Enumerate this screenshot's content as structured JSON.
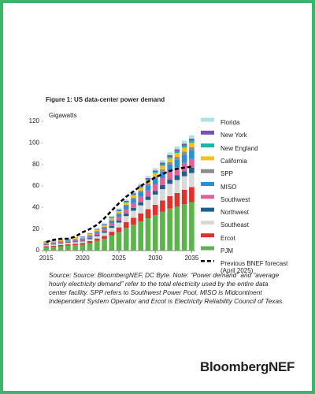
{
  "chart_data": {
    "type": "stacked-bar",
    "title": "Figure 1: US data-center power demand",
    "y_label": "Gigawatts",
    "x": [
      2015,
      2016,
      2017,
      2018,
      2019,
      2020,
      2021,
      2022,
      2023,
      2024,
      2025,
      2026,
      2027,
      2028,
      2029,
      2030,
      2031,
      2032,
      2033,
      2034,
      2035
    ],
    "xlim": [
      2014.5,
      2035.5
    ],
    "xticks": [
      2015,
      2020,
      2025,
      2030,
      2035
    ],
    "ylim": [
      0,
      120
    ],
    "yticks": [
      0,
      20,
      40,
      60,
      80,
      100,
      120
    ],
    "series": [
      {
        "name": "PJM",
        "color": "#5cb44a",
        "values": [
          3,
          3.5,
          4,
          4.5,
          5,
          5.5,
          7,
          9,
          11,
          14,
          17,
          21,
          24,
          27,
          30,
          33,
          36,
          39,
          41,
          43,
          45
        ]
      },
      {
        "name": "Ercot",
        "color": "#e0312c",
        "values": [
          1,
          1,
          1.2,
          1.3,
          1.4,
          1.5,
          1.8,
          2.2,
          2.7,
          3.5,
          4.5,
          5.5,
          6.5,
          7.5,
          8.5,
          9.5,
          10.5,
          11.5,
          12.5,
          13.5,
          14
        ]
      },
      {
        "name": "Southeast",
        "color": "#d9d9d9",
        "values": [
          1,
          1.1,
          1.2,
          1.3,
          1.4,
          1.5,
          1.8,
          2.2,
          2.8,
          3.6,
          4.5,
          5.5,
          6.5,
          7.5,
          8.5,
          9.5,
          10.5,
          11.5,
          12,
          12.5,
          13
        ]
      },
      {
        "name": "Northwest",
        "color": "#1f5f8b",
        "values": [
          0.6,
          0.6,
          0.7,
          0.7,
          0.8,
          0.8,
          1,
          1.2,
          1.4,
          1.7,
          2,
          2.3,
          2.6,
          2.9,
          3.2,
          3.5,
          3.8,
          4.1,
          4.4,
          4.7,
          5
        ]
      },
      {
        "name": "Southwest",
        "color": "#e0609c",
        "values": [
          0.8,
          0.9,
          1,
          1.1,
          1.2,
          1.3,
          1.5,
          1.8,
          2.2,
          2.8,
          3.4,
          4,
          4.6,
          5.1,
          5.6,
          6,
          6.5,
          7,
          7.4,
          7.7,
          8
        ]
      },
      {
        "name": "MISO",
        "color": "#2c8fd6",
        "values": [
          0.5,
          0.5,
          0.6,
          0.6,
          0.7,
          0.7,
          0.9,
          1.1,
          1.4,
          1.9,
          2.4,
          3,
          3.6,
          4.2,
          4.8,
          5.4,
          6,
          6.6,
          7.1,
          7.6,
          8
        ]
      },
      {
        "name": "SPP",
        "color": "#8c8c8c",
        "values": [
          0.2,
          0.2,
          0.2,
          0.2,
          0.3,
          0.3,
          0.4,
          0.5,
          0.6,
          0.8,
          1,
          1.2,
          1.4,
          1.6,
          1.8,
          2,
          2.2,
          2.4,
          2.6,
          2.8,
          3
        ]
      },
      {
        "name": "California",
        "color": "#f2c11c",
        "values": [
          0.8,
          0.8,
          0.9,
          0.9,
          1,
          1,
          1.1,
          1.2,
          1.4,
          1.6,
          1.8,
          2,
          2.2,
          2.5,
          2.7,
          3,
          3.2,
          3.4,
          3.6,
          3.8,
          4
        ]
      },
      {
        "name": "New England",
        "color": "#18b7a8",
        "values": [
          0.2,
          0.2,
          0.2,
          0.2,
          0.2,
          0.3,
          0.3,
          0.4,
          0.5,
          0.6,
          0.7,
          0.8,
          0.9,
          1,
          1.1,
          1.2,
          1.4,
          1.5,
          1.7,
          1.8,
          2
        ]
      },
      {
        "name": "New York",
        "color": "#7a4fbf",
        "values": [
          0.3,
          0.3,
          0.3,
          0.3,
          0.3,
          0.3,
          0.4,
          0.5,
          0.6,
          0.7,
          0.8,
          0.9,
          1,
          1.1,
          1.2,
          1.3,
          1.5,
          1.6,
          1.7,
          1.9,
          2
        ]
      },
      {
        "name": "Florida",
        "color": "#a8e6e0",
        "values": [
          0.3,
          0.3,
          0.3,
          0.4,
          0.4,
          0.4,
          0.5,
          0.6,
          0.7,
          0.9,
          1.1,
          1.3,
          1.5,
          1.7,
          1.9,
          2.1,
          2.3,
          2.5,
          2.7,
          2.8,
          3
        ]
      }
    ],
    "forecast": {
      "name": "Previous BNEF forecast (April 2025)",
      "color": "#000000",
      "values": [
        8,
        10,
        11,
        11,
        13,
        17,
        20,
        24,
        30,
        37,
        44,
        50,
        55,
        60,
        64,
        68,
        71,
        74,
        76,
        77,
        78
      ]
    },
    "caption": "Source: Source: BloombergNEF, DC Byte. Note: “Power demand” and “average hourly electricity demand” refer to the total electricity used by the entire data center facility. SPP refers to Southwest Power Pool, MISO is Midcontinent Independent System Operator and Ercot is Electricity Reliability Council of Texas.",
    "logo": "BloombergNEF"
  }
}
